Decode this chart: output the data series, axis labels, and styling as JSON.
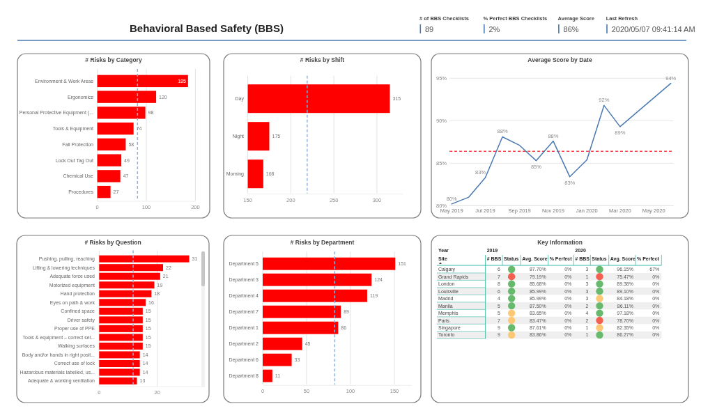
{
  "chart_data": [
    {
      "type": "other",
      "title": "Behavioral Based Safety (BBS)",
      "annotations": [
        "# of BBS Checklists",
        "89",
        "% Perfect BBS Checklists",
        "2%",
        "Average Score",
        "86%",
        "Last Refresh",
        "2020/05/07 09:41:14 AM"
      ]
    },
    {
      "type": "bar",
      "orientation": "horizontal",
      "title": "# Risks by Category",
      "categories": [
        "Environment & Work Areas",
        "Ergonomics",
        "Personal Protective Equipment (...",
        "Tools & Equipment",
        "Fall Protection",
        "Lock Out Tag Out",
        "Chemical Use",
        "Procedures"
      ],
      "values": [
        185,
        120,
        98,
        74,
        58,
        49,
        47,
        27
      ],
      "color": "#ff0000",
      "xlim": [
        0,
        200
      ],
      "xticks": [
        0,
        100,
        200
      ],
      "grid": "x",
      "data_labels": true,
      "ref_lines": [
        {
          "axis": "x",
          "value": 82,
          "color": "#8eb1dc",
          "line_style": "dashed"
        }
      ]
    },
    {
      "type": "bar",
      "orientation": "horizontal",
      "title": "# Risks by Shift",
      "categories": [
        "Day",
        "Night",
        "Morning"
      ],
      "values": [
        315,
        175,
        168
      ],
      "color": "#ff0000",
      "xlim": [
        150,
        330
      ],
      "xticks": [
        150,
        200,
        250,
        300
      ],
      "grid": "x",
      "data_labels": true,
      "ref_lines": [
        {
          "axis": "x",
          "value": 219,
          "color": "#8eb1dc",
          "line_style": "dashed"
        }
      ]
    },
    {
      "type": "line",
      "title": "Average Score by Date",
      "x": [
        "2019-05",
        "2019-06",
        "2019-07",
        "2019-08",
        "2019-09",
        "2019-10",
        "2019-11",
        "2019-12",
        "2020-01",
        "2020-02",
        "2020-03",
        "2020-06"
      ],
      "values": [
        80.2,
        81.0,
        83.3,
        88.1,
        87.1,
        85.3,
        87.6,
        83.4,
        85.4,
        91.8,
        89.3,
        94.4
      ],
      "value_labels": [
        "80%",
        null,
        "83%",
        "88%",
        null,
        "85%",
        "88%",
        "83%",
        null,
        "92%",
        "89%",
        "94%"
      ],
      "color": "#4a78b0",
      "xlim": [
        "2019-04-27",
        "2020-06-06"
      ],
      "xticks": [
        {
          "value": "2019-05",
          "label": "May 2019"
        },
        {
          "value": "2019-07",
          "label": "Jul 2019"
        },
        {
          "value": "2019-09",
          "label": "Sep 2019"
        },
        {
          "value": "2019-11",
          "label": "Nov 2019"
        },
        {
          "value": "2020-01",
          "label": "Jan 2020"
        },
        {
          "value": "2020-03",
          "label": "Mar 2020"
        },
        {
          "value": "2020-05",
          "label": "May 2020"
        }
      ],
      "ylim": [
        80,
        95
      ],
      "yticks": [
        {
          "value": 80,
          "label": "80%"
        },
        {
          "value": 85,
          "label": "85%"
        },
        {
          "value": 90,
          "label": "90%"
        },
        {
          "value": 95,
          "label": "95%"
        }
      ],
      "grid": "y",
      "ref_lines": [
        {
          "axis": "y",
          "value": 86.4,
          "color": "#ff4040",
          "line_style": "dashed"
        }
      ]
    },
    {
      "type": "bar",
      "orientation": "horizontal",
      "title": "# Risks by Question",
      "categories": [
        "Pushing, pulling, reaching",
        "Lifting & lowering techniques",
        "Adequate force used",
        "Motorized equipment",
        "Hand protection",
        "Eyes on path & work",
        "Confined space",
        "Driver safety",
        "Proper use of PPE",
        "Tools & equipment – correct sel...",
        "Walking surfaces",
        "Body and/or hands in right posit...",
        "Correct use of lock",
        "Hazardous materials labelled, us...",
        "Adequate & working ventilation"
      ],
      "values": [
        31,
        22,
        21,
        19,
        18,
        16,
        15,
        15,
        15,
        15,
        15,
        14,
        14,
        14,
        13
      ],
      "color": "#ff0000",
      "xlim": [
        0,
        35
      ],
      "xticks": [
        0,
        20
      ],
      "grid": "x",
      "data_labels": true,
      "ref_lines": [
        {
          "axis": "x",
          "value": 11.7,
          "color": "#8eb1dc",
          "line_style": "dashed"
        }
      ]
    },
    {
      "type": "bar",
      "orientation": "horizontal",
      "title": "# Risks by Department",
      "categories": [
        "Department 5",
        "Department 3",
        "Department 4",
        "Department 7",
        "Department 1",
        "Department 2",
        "Department 6",
        "Department 8"
      ],
      "values": [
        151,
        124,
        119,
        89,
        86,
        45,
        33,
        11
      ],
      "color": "#ff0000",
      "xlim": [
        0,
        170
      ],
      "xticks": [
        0,
        50,
        100,
        150
      ],
      "grid": "x",
      "data_labels": true,
      "ref_lines": [
        {
          "axis": "x",
          "value": 82,
          "color": "#8eb1dc",
          "line_style": "dashed"
        }
      ]
    },
    {
      "type": "other",
      "title": "Key Information",
      "xlabel": "Year",
      "ylabel": "Site",
      "annotations": [
        "2019",
        "2020"
      ],
      "categories": [
        "# BBS",
        "Status",
        "Avg. Score",
        "% Perfect",
        "# BBS",
        "Status",
        "Avg. Score",
        "% Perfect"
      ],
      "y_categories": [
        "Calgary",
        "Grand Rapids",
        "London",
        "Louisville",
        "Madrid",
        "Manila",
        "Memphis",
        "Paris",
        "Singapore",
        "Toronto"
      ],
      "cell_labels": [
        [
          "6",
          null,
          "87.70%",
          "0%",
          "3",
          null,
          "96.15%",
          "67%"
        ],
        [
          "7",
          null,
          "79.19%",
          "0%",
          "1",
          null,
          "75.47%",
          "0%"
        ],
        [
          "8",
          null,
          "85.68%",
          "0%",
          "3",
          null,
          "89.38%",
          "0%"
        ],
        [
          "6",
          null,
          "85.99%",
          "0%",
          "3",
          null,
          "89.10%",
          "0%"
        ],
        [
          "4",
          null,
          "85.99%",
          "0%",
          "3",
          null,
          "84.18%",
          "0%"
        ],
        [
          "5",
          null,
          "87.50%",
          "0%",
          "2",
          null,
          "86.11%",
          "0%"
        ],
        [
          "5",
          null,
          "83.65%",
          "0%",
          "4",
          null,
          "97.18%",
          "0%"
        ],
        [
          "7",
          null,
          "83.47%",
          "0%",
          "2",
          null,
          "78.70%",
          "0%"
        ],
        [
          "9",
          null,
          "87.61%",
          "0%",
          "1",
          null,
          "82.35%",
          "0%"
        ],
        [
          "9",
          null,
          "83.86%",
          "0%",
          "1",
          null,
          "86.27%",
          "0%"
        ]
      ],
      "colors": [
        [
          "#66b96d",
          "#66b96d"
        ],
        [
          "#f3604f",
          "#f3604f"
        ],
        [
          "#66b96d",
          "#66b96d"
        ],
        [
          "#66b96d",
          "#66b96d"
        ],
        [
          "#66b96d",
          "#fdc875"
        ],
        [
          "#66b96d",
          "#66b96d"
        ],
        [
          "#fdc875",
          "#66b96d"
        ],
        [
          "#fdc875",
          "#f3604f"
        ],
        [
          "#66b96d",
          "#fdc875"
        ],
        [
          "#fdc875",
          "#66b96d"
        ]
      ]
    }
  ]
}
